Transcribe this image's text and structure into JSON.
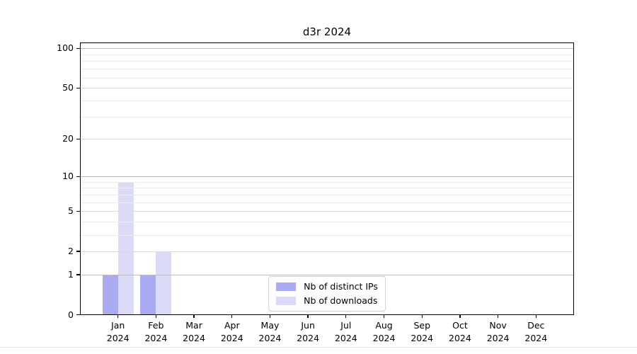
{
  "chart_data": {
    "type": "bar",
    "title": "d3r 2024",
    "categories": [
      "Jan",
      "Feb",
      "Mar",
      "Apr",
      "May",
      "Jun",
      "Jul",
      "Aug",
      "Sep",
      "Oct",
      "Nov",
      "Dec"
    ],
    "category_year": "2024",
    "series": [
      {
        "name": "Nb of distinct IPs",
        "color": "#aaaaf2",
        "values": [
          1,
          1,
          0,
          0,
          0,
          0,
          0,
          0,
          0,
          0,
          0,
          0
        ]
      },
      {
        "name": "Nb of downloads",
        "color": "#dbdbf7",
        "values": [
          9,
          2,
          0,
          0,
          0,
          0,
          0,
          0,
          0,
          0,
          0,
          0
        ]
      }
    ],
    "xlabel": "",
    "ylabel": "",
    "y_scale": "log10(1+y)",
    "y_major_ticks": [
      0,
      1,
      2,
      5,
      10,
      20,
      50,
      100
    ],
    "y_minor_ticks": [
      3,
      4,
      6,
      7,
      8,
      9,
      30,
      40,
      60,
      70,
      80,
      90
    ],
    "ylim": [
      0,
      111
    ],
    "grid": "horizontal",
    "legend_position": "lower center",
    "colors": {
      "axis": "#000000",
      "grid_power10": "#bbbbbb",
      "grid_major": "#dadada",
      "grid_minor": "#eeeeee",
      "legend_border": "#d0d0d0",
      "text": "#000000"
    }
  }
}
